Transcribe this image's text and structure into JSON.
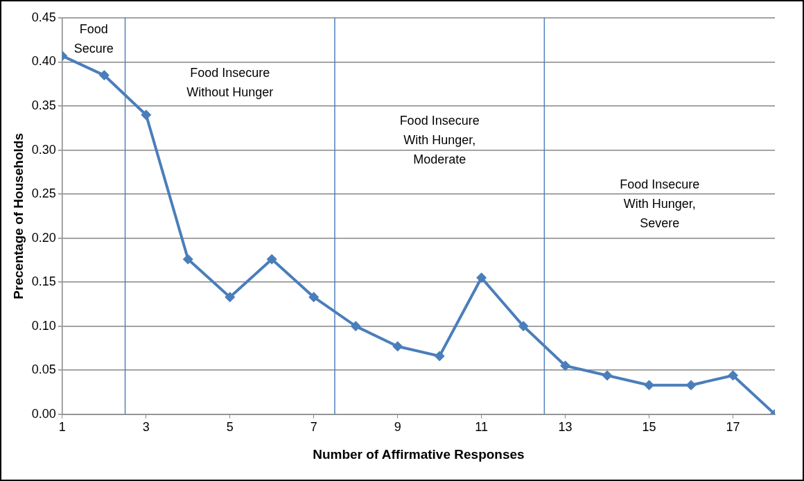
{
  "chart_data": {
    "type": "line",
    "xlabel": "Number of Affirmative Responses",
    "ylabel": "Precentage of Households",
    "x": [
      1,
      2,
      3,
      4,
      5,
      6,
      7,
      8,
      9,
      10,
      11,
      12,
      13,
      14,
      15,
      16,
      17,
      18
    ],
    "series": [
      {
        "color": "#4a7ebb",
        "values": [
          0.407,
          0.385,
          0.34,
          0.176,
          0.133,
          0.176,
          0.133,
          0.1,
          0.077,
          0.066,
          0.155,
          0.1,
          0.055,
          0.044,
          0.033,
          0.033,
          0.044,
          0
        ]
      }
    ],
    "xlim": [
      1,
      18
    ],
    "xticks": [
      1,
      3,
      5,
      7,
      9,
      11,
      13,
      15,
      17
    ],
    "ylim": [
      0,
      0.45
    ],
    "yticks": [
      {
        "value": 0,
        "label": "0.00"
      },
      {
        "value": 0.05,
        "label": "0.05"
      },
      {
        "value": 0.1,
        "label": "0.10"
      },
      {
        "value": 0.15,
        "label": "0.15"
      },
      {
        "value": 0.2,
        "label": "0.20"
      },
      {
        "value": 0.25,
        "label": "0.25"
      },
      {
        "value": 0.3,
        "label": "0.30"
      },
      {
        "value": 0.35,
        "label": "0.35"
      },
      {
        "value": 0.4,
        "label": "0.40"
      },
      {
        "value": 0.45,
        "label": "0.45"
      }
    ],
    "grid": "y",
    "legend": false,
    "marker": "diamond",
    "line_style": "solid",
    "ref_lines": [
      {
        "axis": "x",
        "value": 2.5,
        "color": "#4f81bd"
      },
      {
        "axis": "x",
        "value": 7.5,
        "color": "#4f81bd"
      },
      {
        "axis": "x",
        "value": 12.5,
        "color": "#4f81bd"
      }
    ],
    "annotations": [
      "Food\nSecure",
      "Food Insecure\nWithout Hunger",
      "Food Insecure\nWith Hunger,\nModerate",
      "Food Insecure\nWith Hunger,\nSevere"
    ]
  }
}
